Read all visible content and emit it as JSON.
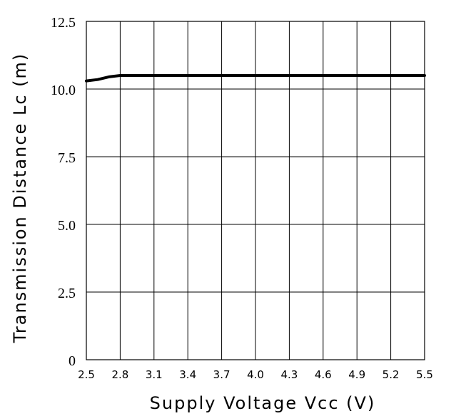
{
  "chart_data": {
    "type": "line",
    "title": "",
    "xlabel": "Supply Voltage Vcc (V)",
    "ylabel": "Transmission Distance Lc (m)",
    "xlim": [
      2.5,
      5.5
    ],
    "ylim": [
      0,
      12.5
    ],
    "x_ticks": [
      2.5,
      2.8,
      3.1,
      3.4,
      3.7,
      4.0,
      4.3,
      4.6,
      4.9,
      5.2,
      5.5
    ],
    "x_tick_labels": [
      "2.5",
      "2.8",
      "3.1",
      "3.4",
      "3.7",
      "4.0",
      "4.3",
      "4.6",
      "4.9",
      "5.2",
      "5.5"
    ],
    "y_ticks": [
      0,
      2.5,
      5.0,
      7.5,
      10.0,
      12.5
    ],
    "y_tick_labels": [
      "0",
      "2.5",
      "5.0",
      "7.5",
      "10.0",
      "12.5"
    ],
    "grid": true,
    "series": [
      {
        "x": [
          2.5,
          2.6,
          2.7,
          2.8,
          3.1,
          3.4,
          3.7,
          4.0,
          4.3,
          4.6,
          4.9,
          5.2,
          5.5
        ],
        "y": [
          10.3,
          10.35,
          10.45,
          10.5,
          10.5,
          10.5,
          10.5,
          10.5,
          10.5,
          10.5,
          10.5,
          10.5,
          10.5
        ]
      }
    ]
  }
}
